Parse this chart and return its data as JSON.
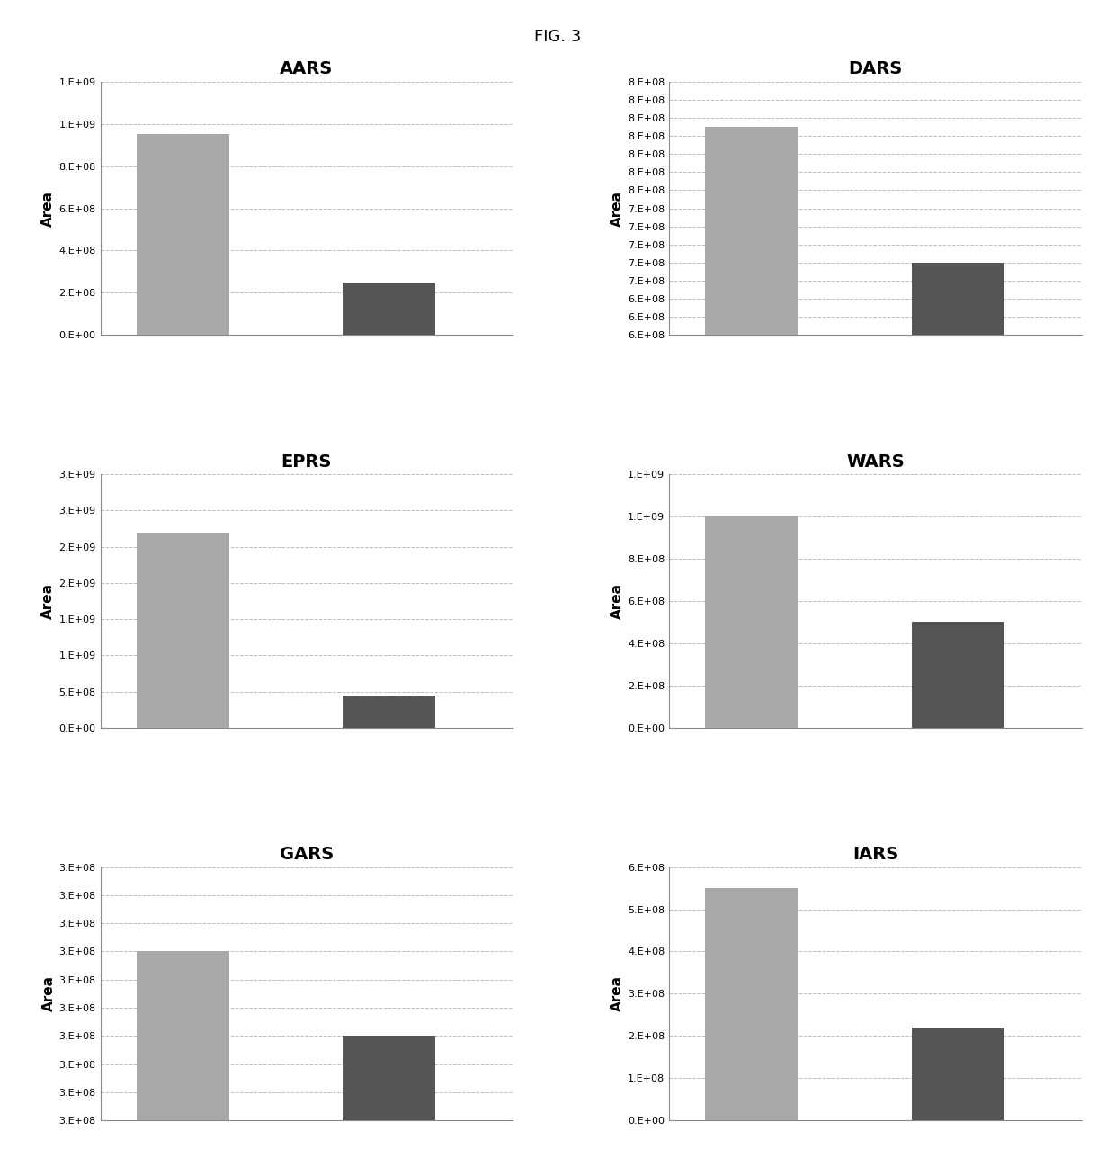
{
  "subplots": [
    {
      "title": "AARS",
      "bar1": 950000000.0,
      "bar2": 250000000.0,
      "bar1_color": "#a8a8a8",
      "bar2_color": "#555555",
      "ylim": [
        0,
        1200000000.0
      ],
      "yticks": [
        0,
        200000000.0,
        400000000.0,
        600000000.0,
        800000000.0,
        1000000000.0,
        1200000000.0
      ],
      "ytick_labels": [
        "0.E+00",
        "2.E+08",
        "4.E+08",
        "6.E+08",
        "8.E+08",
        "1.E+09",
        "1.E+09"
      ]
    },
    {
      "title": "DARS",
      "bar1": 830000000.0,
      "bar2": 680000000.0,
      "bar1_color": "#a8a8a8",
      "bar2_color": "#555555",
      "ylim": [
        600000000.0,
        880000000.0
      ],
      "yticks": [
        600000000.0,
        620000000.0,
        640000000.0,
        660000000.0,
        680000000.0,
        700000000.0,
        720000000.0,
        740000000.0,
        760000000.0,
        780000000.0,
        800000000.0,
        820000000.0,
        840000000.0,
        860000000.0,
        880000000.0
      ],
      "ytick_labels": [
        "6.E+08",
        "6.E+08",
        "6.E+08",
        "7.E+08",
        "7.E+08",
        "7.E+08",
        "7.E+08",
        "7.E+08",
        "8.E+08",
        "8.E+08",
        "8.E+08",
        "8.E+08",
        "8.E+08",
        "8.E+08",
        "8.E+08"
      ]
    },
    {
      "title": "EPRS",
      "bar1": 2700000000.0,
      "bar2": 450000000.0,
      "bar1_color": "#a8a8a8",
      "bar2_color": "#555555",
      "ylim": [
        0,
        3500000000.0
      ],
      "yticks": [
        0,
        500000000.0,
        1000000000.0,
        1500000000.0,
        2000000000.0,
        2500000000.0,
        3000000000.0,
        3500000000.0
      ],
      "ytick_labels": [
        "0.E+00",
        "5.E+08",
        "1.E+09",
        "1.E+09",
        "2.E+09",
        "2.E+09",
        "3.E+09",
        "3.E+09"
      ]
    },
    {
      "title": "WARS",
      "bar1": 1000000000.0,
      "bar2": 500000000.0,
      "bar1_color": "#a8a8a8",
      "bar2_color": "#555555",
      "ylim": [
        0,
        1200000000.0
      ],
      "yticks": [
        0,
        200000000.0,
        400000000.0,
        600000000.0,
        800000000.0,
        1000000000.0,
        1200000000.0
      ],
      "ytick_labels": [
        "0.E+00",
        "2.E+08",
        "4.E+08",
        "6.E+08",
        "8.E+08",
        "1.E+09",
        "1.E+09"
      ]
    },
    {
      "title": "GARS",
      "bar1": 308000000.0,
      "bar2": 302000000.0,
      "bar1_color": "#a8a8a8",
      "bar2_color": "#555555",
      "ylim": [
        296000000.0,
        314000000.0
      ],
      "yticks": [
        296000000.0,
        298000000.0,
        300000000.0,
        302000000.0,
        304000000.0,
        306000000.0,
        308000000.0,
        310000000.0,
        312000000.0,
        314000000.0
      ],
      "ytick_labels": [
        "3.E+08",
        "3.E+08",
        "3.E+08",
        "3.E+08",
        "3.E+08",
        "3.E+08",
        "3.E+08",
        "3.E+08",
        "3.E+08",
        "3.E+08"
      ]
    },
    {
      "title": "IARS",
      "bar1": 550000000.0,
      "bar2": 220000000.0,
      "bar1_color": "#a8a8a8",
      "bar2_color": "#555555",
      "ylim": [
        0,
        600000000.0
      ],
      "yticks": [
        0,
        100000000.0,
        200000000.0,
        300000000.0,
        400000000.0,
        500000000.0,
        600000000.0
      ],
      "ytick_labels": [
        "0.E+00",
        "1.E+08",
        "2.E+08",
        "3.E+08",
        "4.E+08",
        "5.E+08",
        "6.E+08"
      ]
    }
  ],
  "ylabel": "Area",
  "fig_title": "FIG. 3",
  "background_color": "#ffffff",
  "grid_color": "#bbbbbb",
  "title_fontsize": 14,
  "axis_label_fontsize": 11,
  "tick_fontsize": 8
}
